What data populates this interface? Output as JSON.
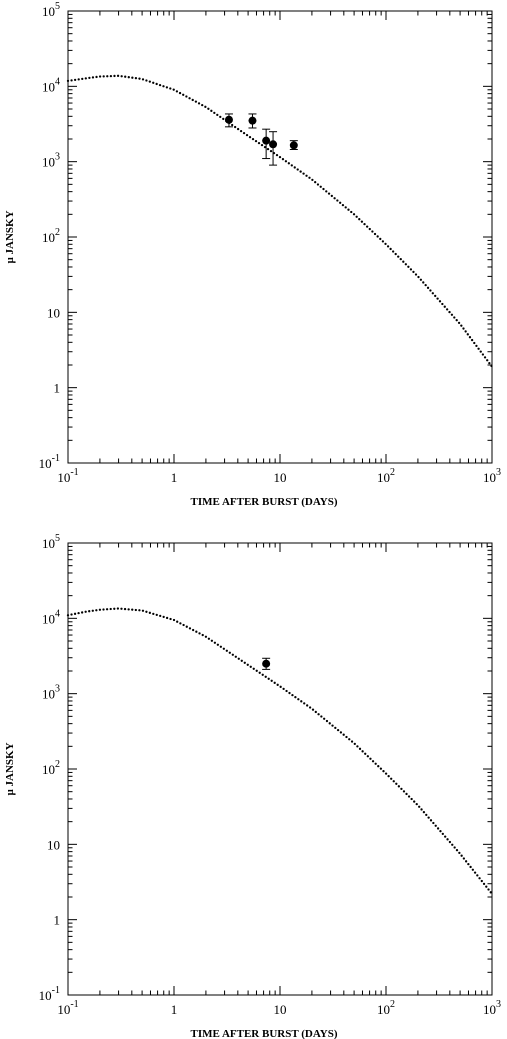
{
  "chart_data": [
    {
      "type": "scatter",
      "xscale": "log",
      "yscale": "log",
      "xlim": [
        0.1,
        1000
      ],
      "ylim": [
        0.1,
        100000
      ],
      "xlabel": "TIME AFTER BURST (DAYS)",
      "ylabel": "µ JANSKY",
      "x_tick_labels": [
        {
          "value": 0.1,
          "base": "10",
          "exp": "-1"
        },
        {
          "value": 1,
          "base": "1",
          "exp": ""
        },
        {
          "value": 10,
          "base": "10",
          "exp": ""
        },
        {
          "value": 100,
          "base": "10",
          "exp": "2"
        },
        {
          "value": 1000,
          "base": "10",
          "exp": "3"
        }
      ],
      "y_tick_labels": [
        {
          "value": 0.1,
          "base": "10",
          "exp": "-1"
        },
        {
          "value": 1,
          "base": "1",
          "exp": ""
        },
        {
          "value": 10,
          "base": "10",
          "exp": ""
        },
        {
          "value": 100,
          "base": "10",
          "exp": "2"
        },
        {
          "value": 1000,
          "base": "10",
          "exp": "3"
        },
        {
          "value": 10000,
          "base": "10",
          "exp": "4"
        },
        {
          "value": 100000,
          "base": "10",
          "exp": "5"
        }
      ],
      "model_curve": {
        "style": "dotted",
        "x": [
          0.1,
          0.15,
          0.2,
          0.3,
          0.5,
          1,
          2,
          5,
          10,
          20,
          50,
          100,
          200,
          500,
          1000
        ],
        "y": [
          11800,
          12800,
          13500,
          13800,
          12500,
          9000,
          5300,
          2200,
          1150,
          580,
          200,
          80,
          30,
          7,
          1.9
        ]
      },
      "points": [
        {
          "x": 3.3,
          "y": 3600,
          "ylo": 2900,
          "yhi": 4300
        },
        {
          "x": 5.5,
          "y": 3500,
          "ylo": 2800,
          "yhi": 4300
        },
        {
          "x": 7.4,
          "y": 1900,
          "ylo": 1100,
          "yhi": 2700
        },
        {
          "x": 8.6,
          "y": 1700,
          "ylo": 900,
          "yhi": 2500
        },
        {
          "x": 13.5,
          "y": 1650,
          "ylo": 1450,
          "yhi": 1900
        }
      ]
    },
    {
      "type": "scatter",
      "xscale": "log",
      "yscale": "log",
      "xlim": [
        0.1,
        1000
      ],
      "ylim": [
        0.1,
        100000
      ],
      "xlabel": "TIME AFTER BURST (DAYS)",
      "ylabel": "µ JANSKY",
      "x_tick_labels": [
        {
          "value": 0.1,
          "base": "10",
          "exp": "-1"
        },
        {
          "value": 1,
          "base": "1",
          "exp": ""
        },
        {
          "value": 10,
          "base": "10",
          "exp": ""
        },
        {
          "value": 100,
          "base": "10",
          "exp": "2"
        },
        {
          "value": 1000,
          "base": "10",
          "exp": "3"
        }
      ],
      "y_tick_labels": [
        {
          "value": 0.1,
          "base": "10",
          "exp": "-1"
        },
        {
          "value": 1,
          "base": "1",
          "exp": ""
        },
        {
          "value": 10,
          "base": "10",
          "exp": ""
        },
        {
          "value": 100,
          "base": "10",
          "exp": "2"
        },
        {
          "value": 1000,
          "base": "10",
          "exp": "3"
        },
        {
          "value": 10000,
          "base": "10",
          "exp": "4"
        },
        {
          "value": 100000,
          "base": "10",
          "exp": "5"
        }
      ],
      "model_curve": {
        "style": "dotted",
        "x": [
          0.1,
          0.15,
          0.2,
          0.3,
          0.5,
          1,
          2,
          5,
          10,
          20,
          50,
          100,
          200,
          500,
          1000
        ],
        "y": [
          11000,
          12300,
          13000,
          13500,
          12700,
          9500,
          5700,
          2400,
          1250,
          630,
          220,
          87,
          33,
          7.5,
          2.2
        ]
      },
      "points": [
        {
          "x": 7.4,
          "y": 2500,
          "ylo": 2100,
          "yhi": 2950
        }
      ]
    }
  ]
}
